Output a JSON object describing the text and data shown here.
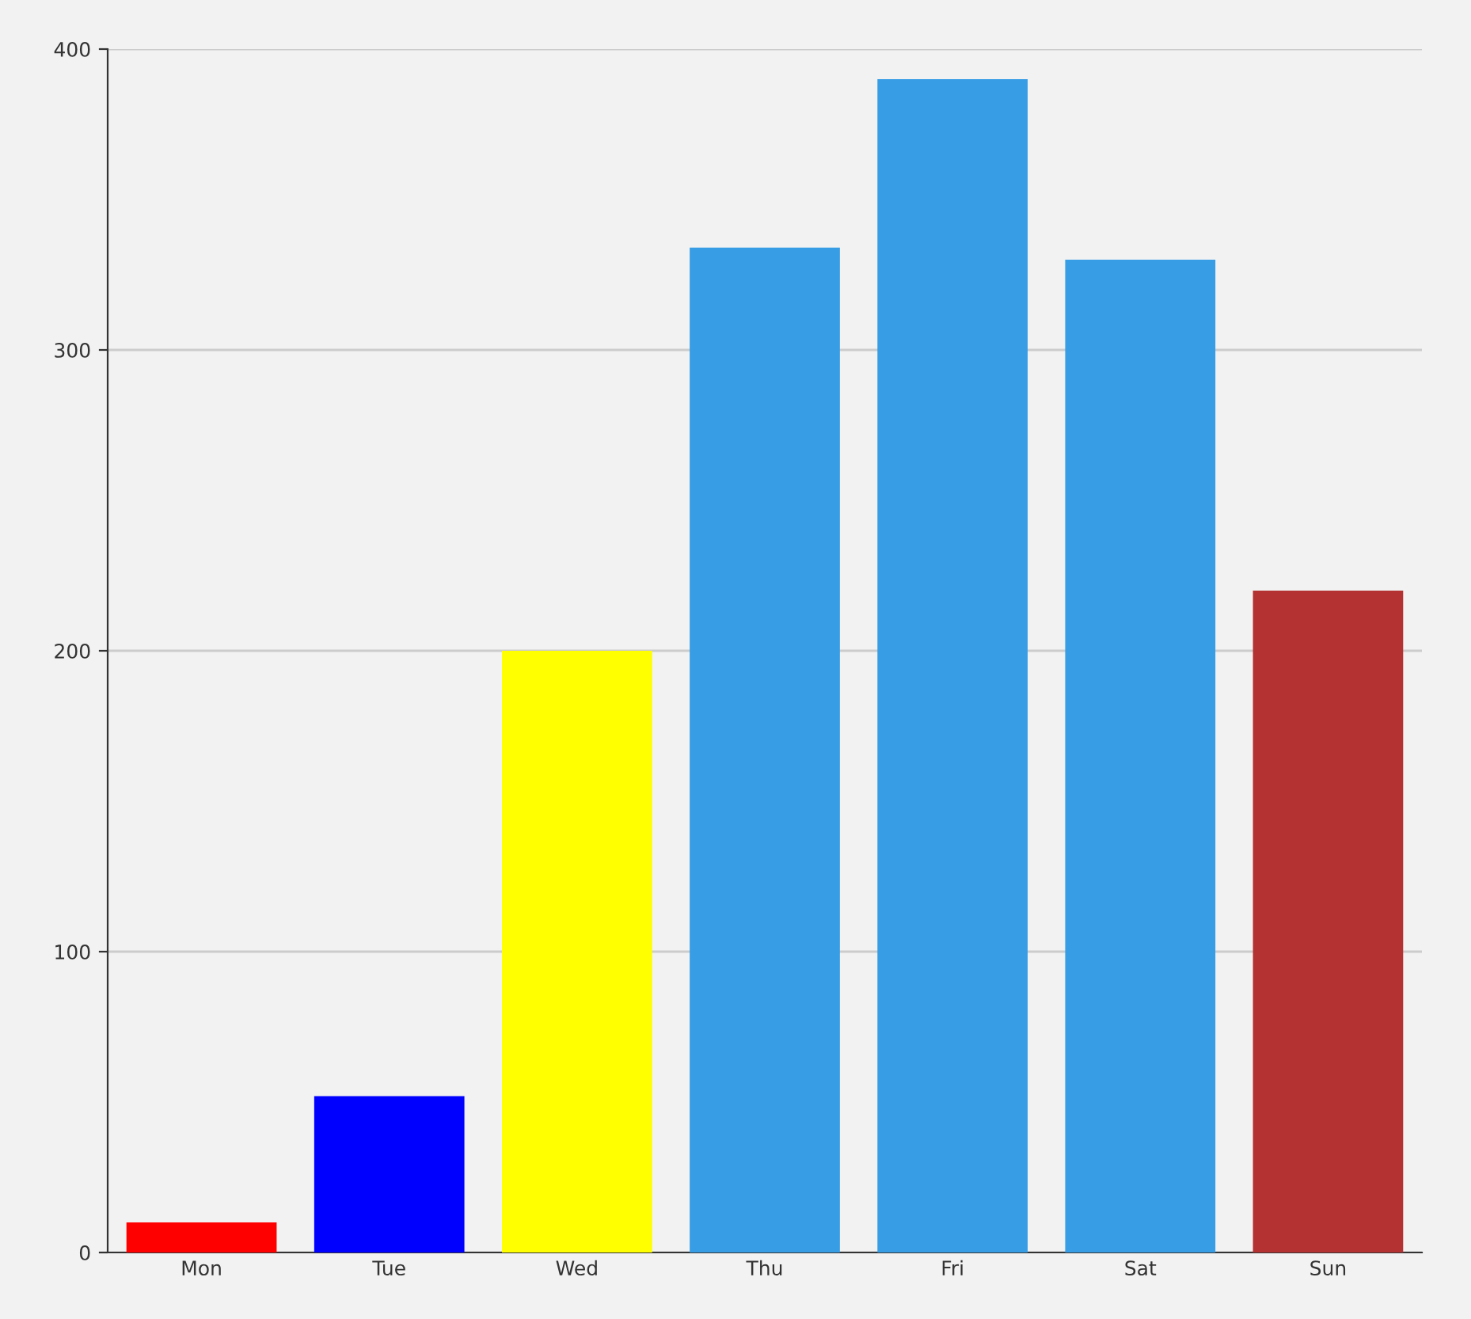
{
  "chart_data": {
    "type": "bar",
    "categories": [
      "Mon",
      "Tue",
      "Wed",
      "Thu",
      "Fri",
      "Sat",
      "Sun"
    ],
    "values": [
      10,
      52,
      200,
      334,
      390,
      330,
      220
    ],
    "colors": [
      "#ff0000",
      "#0000ff",
      "#ffff00",
      "#379de5",
      "#379de5",
      "#379de5",
      "#b43232"
    ],
    "ylim": [
      0,
      400
    ],
    "yticks": [
      0,
      100,
      200,
      300,
      400
    ],
    "grid": "y"
  }
}
